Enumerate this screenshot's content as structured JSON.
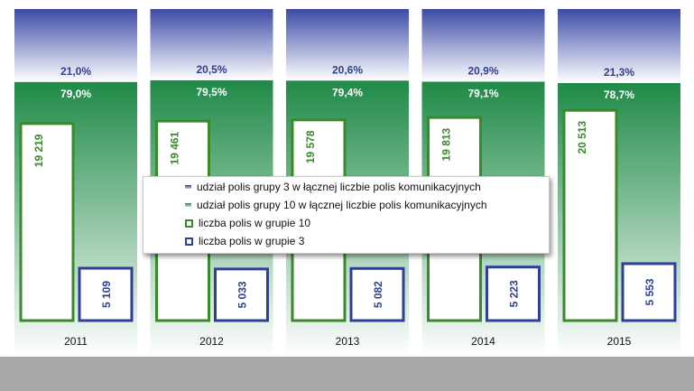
{
  "chart_data": {
    "type": "bar",
    "categories": [
      "2011",
      "2012",
      "2013",
      "2014",
      "2015"
    ],
    "series": [
      {
        "name": "udział polis grupy 3 w łącznej liczbie polis komunikacyjnych",
        "kind": "share",
        "values": [
          21.0,
          20.5,
          20.6,
          20.9,
          21.3
        ],
        "labels": [
          "21,0%",
          "20,5%",
          "20,6%",
          "20,9%",
          "21,3%"
        ]
      },
      {
        "name": "udział polis grupy 10 w łącznej liczbie polis komunikacyjnych",
        "kind": "share",
        "values": [
          79.0,
          79.5,
          79.4,
          79.1,
          78.7
        ],
        "labels": [
          "79,0%",
          "79,5%",
          "79,4%",
          "79,1%",
          "78,7%"
        ]
      },
      {
        "name": "liczba polis w grupie 10",
        "kind": "count",
        "values": [
          19219,
          19461,
          19578,
          19813,
          20513
        ],
        "labels": [
          "19 219",
          "19 461",
          "19 578",
          "19 813",
          "20 513"
        ]
      },
      {
        "name": "liczba polis w grupie 3",
        "kind": "count",
        "values": [
          5109,
          5033,
          5082,
          5223,
          5553
        ],
        "labels": [
          "5 109",
          "5 033",
          "5 082",
          "5 223",
          "5 553"
        ]
      }
    ],
    "title": "",
    "xlabel": "",
    "ylabel": "",
    "ylim_share": [
      0,
      100
    ],
    "grid": false,
    "legend_position": "center",
    "colors": {
      "group3": "#2e3f95",
      "group10": "#3a8a2c",
      "group3_gradient": "#3b4ba6",
      "group10_gradient": "#1f8a47",
      "bottom_band": "#a9a9a9"
    }
  }
}
